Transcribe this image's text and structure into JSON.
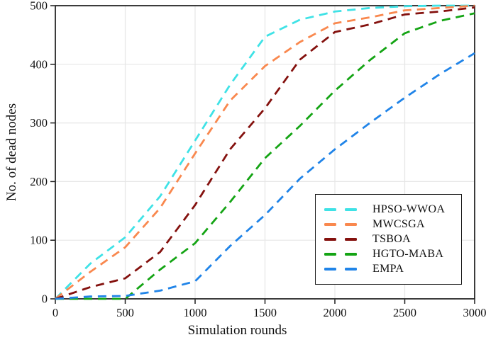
{
  "figure": {
    "background": "#ffffff",
    "axis_color": "#1b1b1b",
    "grid_color": "#e6e6e6",
    "text_color": "#101010"
  },
  "chart_data": {
    "type": "line",
    "title": "",
    "xlabel": "Simulation rounds",
    "ylabel": "No. of dead nodes",
    "xlim": [
      0,
      3000
    ],
    "ylim": [
      0,
      500
    ],
    "x_ticks": [
      0,
      500,
      1000,
      1500,
      2000,
      2500,
      3000
    ],
    "y_ticks": [
      0,
      100,
      200,
      300,
      400,
      500
    ],
    "grid": true,
    "line_style": "dashed",
    "legend_position": "lower-right",
    "x": [
      0,
      250,
      500,
      750,
      1000,
      1250,
      1500,
      1750,
      2000,
      2250,
      2500,
      2750,
      3000
    ],
    "series": [
      {
        "name": "HPSO-WWOA",
        "color": "#3fe2e6",
        "values": [
          0,
          60,
          105,
          175,
          270,
          365,
          447,
          476,
          490,
          496,
          499,
          500,
          500
        ]
      },
      {
        "name": "MWCSGA",
        "color": "#f9884e",
        "values": [
          0,
          46,
          88,
          155,
          248,
          338,
          397,
          438,
          470,
          480,
          492,
          496,
          500
        ]
      },
      {
        "name": "TSBOA",
        "color": "#84110e",
        "values": [
          0,
          20,
          35,
          80,
          160,
          255,
          325,
          408,
          455,
          468,
          485,
          490,
          497
        ]
      },
      {
        "name": "HGTO-MABA",
        "color": "#14a414",
        "values": [
          0,
          0,
          0,
          50,
          95,
          165,
          240,
          295,
          355,
          407,
          453,
          474,
          487
        ]
      },
      {
        "name": "EMPA",
        "color": "#2084e8",
        "values": [
          0,
          4,
          5,
          14,
          30,
          90,
          143,
          205,
          255,
          300,
          343,
          383,
          419
        ]
      }
    ]
  }
}
